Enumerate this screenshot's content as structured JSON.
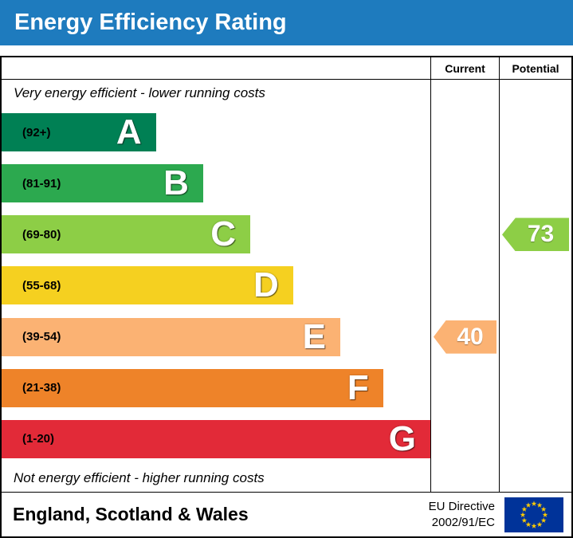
{
  "title": "Energy Efficiency Rating",
  "columns": {
    "current": "Current",
    "potential": "Potential"
  },
  "notes": {
    "top": "Very energy efficient - lower running costs",
    "bottom": "Not energy efficient - higher running costs"
  },
  "bands": [
    {
      "letter": "A",
      "range": "(92+)",
      "color": "#008054",
      "width_pct": 36
    },
    {
      "letter": "B",
      "range": "(81-91)",
      "color": "#2ca94f",
      "width_pct": 47
    },
    {
      "letter": "C",
      "range": "(69-80)",
      "color": "#8dce46",
      "width_pct": 58
    },
    {
      "letter": "D",
      "range": "(55-68)",
      "color": "#f5d020",
      "width_pct": 68
    },
    {
      "letter": "E",
      "range": "(39-54)",
      "color": "#fbb273",
      "width_pct": 79
    },
    {
      "letter": "F",
      "range": "(21-38)",
      "color": "#ee8329",
      "width_pct": 89
    },
    {
      "letter": "G",
      "range": "(1-20)",
      "color": "#e22a38",
      "width_pct": 100
    }
  ],
  "ratings": {
    "current": {
      "value": "40",
      "band": "E",
      "band_index": 4,
      "color": "#fbb273"
    },
    "potential": {
      "value": "73",
      "band": "C",
      "band_index": 2,
      "color": "#8dce46"
    }
  },
  "footer": {
    "region": "England, Scotland & Wales",
    "directive": [
      "EU Directive",
      "2002/91/EC"
    ]
  },
  "theme": {
    "header_blue": "#1e7bbe",
    "eu_flag_blue": "#003399",
    "eu_star_yellow": "#ffcc00",
    "border_black": "#000000"
  },
  "chart_data": {
    "type": "bar",
    "orientation": "horizontal",
    "title": "Energy Efficiency Rating",
    "categories": [
      "A",
      "B",
      "C",
      "D",
      "E",
      "F",
      "G"
    ],
    "score_ranges": [
      "92+",
      "81-91",
      "69-80",
      "55-68",
      "39-54",
      "21-38",
      "1-20"
    ],
    "bar_width_pct": [
      36,
      47,
      58,
      68,
      79,
      89,
      100
    ],
    "colors": [
      "#008054",
      "#2ca94f",
      "#8dce46",
      "#f5d020",
      "#fbb273",
      "#ee8329",
      "#e22a38"
    ],
    "score_scale": [
      1,
      100
    ],
    "markers": [
      {
        "label": "Current",
        "value": 40,
        "band": "E"
      },
      {
        "label": "Potential",
        "value": 73,
        "band": "C"
      }
    ],
    "top_caption": "Very energy efficient - lower running costs",
    "bottom_caption": "Not energy efficient - higher running costs",
    "footer_region": "England, Scotland & Wales",
    "directive": "EU Directive 2002/91/EC",
    "legend_position": "none",
    "grid": false
  }
}
